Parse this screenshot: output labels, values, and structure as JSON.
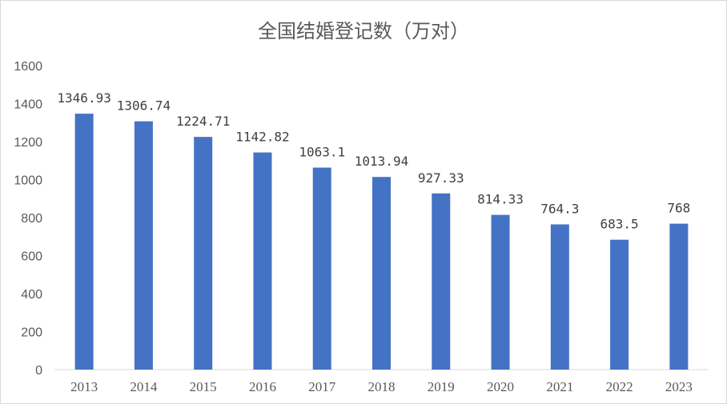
{
  "chart_data": {
    "type": "bar",
    "title": "全国结婚登记数（万对）",
    "categories": [
      "2013",
      "2014",
      "2015",
      "2016",
      "2017",
      "2018",
      "2019",
      "2020",
      "2021",
      "2022",
      "2023"
    ],
    "values": [
      1346.93,
      1306.74,
      1224.71,
      1142.82,
      1063.1,
      1013.94,
      927.33,
      814.33,
      764.3,
      683.5,
      768
    ],
    "data_labels": [
      "1346.93",
      "1306.74",
      "1224.71",
      "1142.82",
      "1063.1",
      "1013.94",
      "927.33",
      "814.33",
      "764.3",
      "683.5",
      "768"
    ],
    "ylim": [
      0,
      1600
    ],
    "yticks": [
      "0",
      "200",
      "400",
      "600",
      "800",
      "1000",
      "1200",
      "1400",
      "1600"
    ],
    "xlabel": "",
    "ylabel": "",
    "grid": false,
    "legend": "none",
    "bar_color": "#4472C4",
    "axis_color": "#d9d9d9",
    "text_color": "#595959"
  }
}
